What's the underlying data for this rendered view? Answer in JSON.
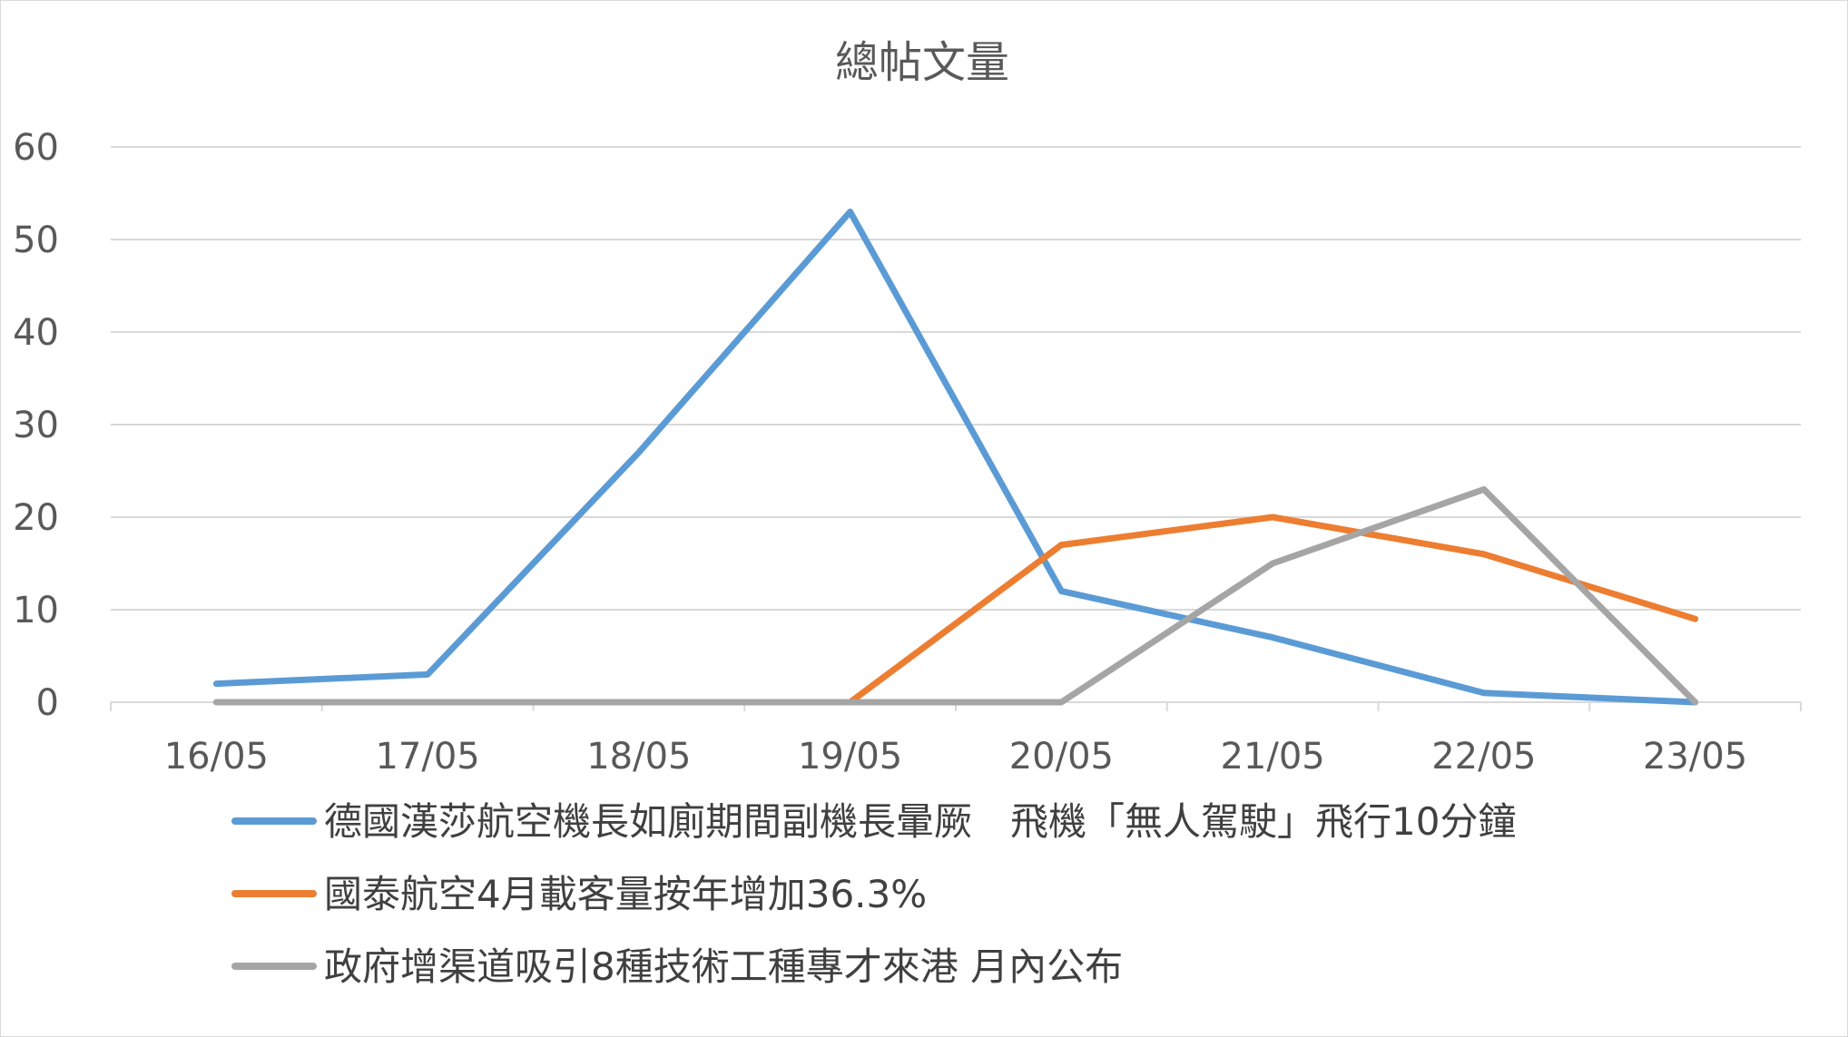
{
  "chart_data": {
    "type": "line",
    "title": "總帖文量",
    "categories": [
      "16/05",
      "17/05",
      "18/05",
      "19/05",
      "20/05",
      "21/05",
      "22/05",
      "23/05"
    ],
    "yticks": [
      "0",
      "10",
      "20",
      "30",
      "40",
      "50",
      "60"
    ],
    "ylim": [
      0,
      60
    ],
    "grid": true,
    "legend_position": "bottom",
    "series": [
      {
        "name": "德國漢莎航空機長如廁期間副機長暈厥　飛機「無人駕駛」飛行10分鐘",
        "color": "#5b9bd5",
        "values": [
          2,
          3,
          27,
          53,
          12,
          7,
          1,
          0
        ]
      },
      {
        "name": "國泰航空4月載客量按年增加36.3%",
        "color": "#ed7d31",
        "values": [
          null,
          null,
          null,
          0,
          17,
          20,
          16,
          9
        ]
      },
      {
        "name": "政府增渠道吸引8種技術工種專才來港 月內公布",
        "color": "#a5a5a5",
        "values": [
          0,
          0,
          0,
          0,
          0,
          15,
          23,
          0
        ]
      }
    ]
  }
}
